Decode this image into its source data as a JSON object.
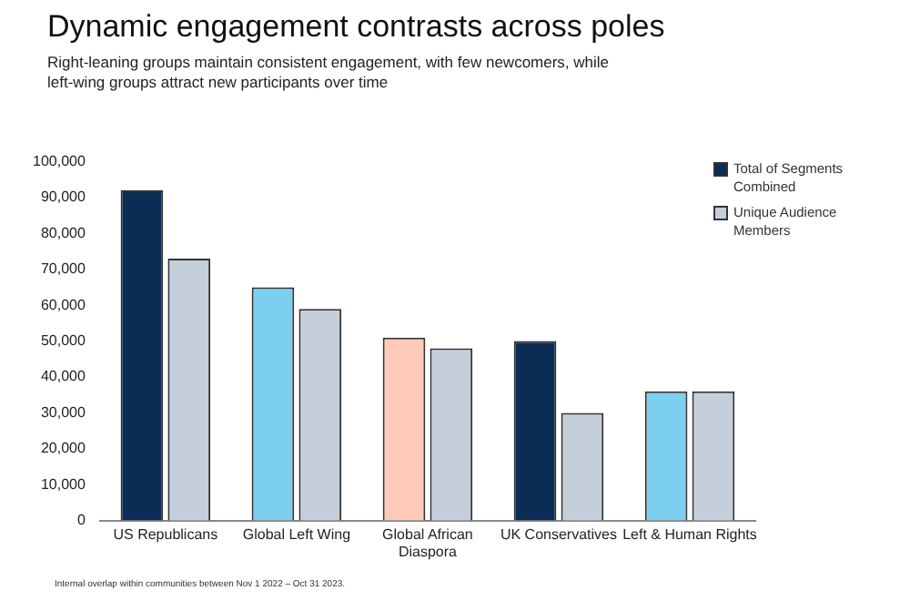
{
  "chart_data": {
    "type": "bar",
    "title": "Dynamic engagement contrasts across poles",
    "subtitle": "Right-leaning groups maintain consistent engagement, with few newcomers, while left-wing groups attract new participants over time",
    "categories": [
      "US Republicans",
      "Global Left Wing",
      "Global African Diaspora",
      "UK Conservatives",
      "Left & Human Rights"
    ],
    "series": [
      {
        "name": "Total of Segments Combined",
        "color": "#0b2d55",
        "colors": [
          "#0b2d55",
          "#7dcff0",
          "#ffcbb8",
          "#0b2d55",
          "#7dcff0"
        ],
        "values": [
          92000,
          65000,
          51000,
          50000,
          36000
        ]
      },
      {
        "name": "Unique Audience Members",
        "color": "#c5cfdb",
        "values": [
          73000,
          59000,
          48000,
          30000,
          36000
        ]
      }
    ],
    "ylim": [
      0,
      100000
    ],
    "yticks": [
      0,
      {
        "value": 10000,
        "label": "10,000"
      },
      {
        "value": 20000,
        "label": "20,000"
      },
      {
        "value": 30000,
        "label": "30,000"
      },
      {
        "value": 40000,
        "label": "40,000"
      },
      {
        "value": 50000,
        "label": "50,000"
      },
      {
        "value": 60000,
        "label": "60,000"
      },
      {
        "value": 70000,
        "label": "70,000"
      },
      {
        "value": 80000,
        "label": "80,000"
      },
      {
        "value": 90000,
        "label": "90,000"
      },
      {
        "value": 100000,
        "label": "100,000"
      }
    ],
    "grid": false,
    "legend": "top right",
    "annotations": [
      "Internal overlap within communities between Nov 1 2022 – Oct 31 2023."
    ]
  }
}
